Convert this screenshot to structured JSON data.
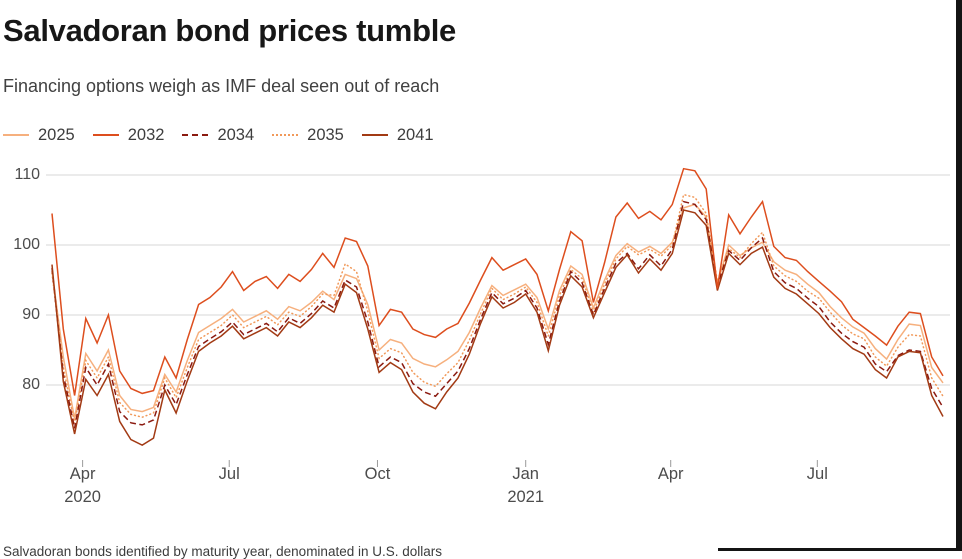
{
  "header": {
    "title": "Salvadoran bond prices tumble",
    "subtitle": "Financing options weigh as IMF deal seen out of reach"
  },
  "footnote": "Salvadoran bonds identified by maturity year, denominated in U.S. dollars",
  "colors": {
    "background": "#ffffff",
    "gridline": "#d7d7d7",
    "axis_text": "#4c4c4c",
    "title_text": "#171717",
    "subtitle_text": "#414141",
    "screenshot_edge": "#141414"
  },
  "chart_data": {
    "type": "line",
    "title": "Salvadoran bond prices tumble",
    "subtitle": "Financing options weigh as IMF deal seen out of reach",
    "ylabel": "",
    "xlabel": "",
    "ylim": [
      70,
      113
    ],
    "yticks": [
      80,
      90,
      100,
      110
    ],
    "grid": "horizontal",
    "legend_position": "top-left",
    "xticks": [
      {
        "label": "Apr",
        "sublabel": "2020",
        "date": "2020-04-01"
      },
      {
        "label": "Jul",
        "sublabel": "",
        "date": "2020-07-01"
      },
      {
        "label": "Oct",
        "sublabel": "",
        "date": "2020-10-01"
      },
      {
        "label": "Jan",
        "sublabel": "2021",
        "date": "2021-01-01"
      },
      {
        "label": "Apr",
        "sublabel": "",
        "date": "2021-04-01"
      },
      {
        "label": "Jul",
        "sublabel": "",
        "date": "2021-07-01"
      }
    ],
    "x": [
      "2020-03-13",
      "2020-03-20",
      "2020-03-27",
      "2020-04-03",
      "2020-04-10",
      "2020-04-17",
      "2020-04-24",
      "2020-05-01",
      "2020-05-08",
      "2020-05-15",
      "2020-05-22",
      "2020-05-29",
      "2020-06-05",
      "2020-06-12",
      "2020-06-19",
      "2020-06-26",
      "2020-07-03",
      "2020-07-10",
      "2020-07-17",
      "2020-07-24",
      "2020-07-31",
      "2020-08-07",
      "2020-08-14",
      "2020-08-21",
      "2020-08-28",
      "2020-09-04",
      "2020-09-11",
      "2020-09-18",
      "2020-09-25",
      "2020-10-02",
      "2020-10-09",
      "2020-10-16",
      "2020-10-23",
      "2020-10-30",
      "2020-11-06",
      "2020-11-13",
      "2020-11-20",
      "2020-11-27",
      "2020-12-04",
      "2020-12-11",
      "2020-12-18",
      "2020-12-25",
      "2021-01-01",
      "2021-01-08",
      "2021-01-15",
      "2021-01-22",
      "2021-01-29",
      "2021-02-05",
      "2021-02-12",
      "2021-02-19",
      "2021-02-26",
      "2021-03-05",
      "2021-03-12",
      "2021-03-19",
      "2021-03-26",
      "2021-04-02",
      "2021-04-09",
      "2021-04-16",
      "2021-04-23",
      "2021-04-30",
      "2021-05-07",
      "2021-05-14",
      "2021-05-21",
      "2021-05-28",
      "2021-06-04",
      "2021-06-11",
      "2021-06-18",
      "2021-06-25",
      "2021-07-02",
      "2021-07-09",
      "2021-07-16",
      "2021-07-23",
      "2021-07-30",
      "2021-08-06",
      "2021-08-13",
      "2021-08-20",
      "2021-08-27",
      "2021-09-03",
      "2021-09-10",
      "2021-09-17"
    ],
    "series": [
      {
        "name": "2025",
        "color": "#F6B07E",
        "style": "solid",
        "values": [
          96.3,
          84.0,
          75.2,
          84.5,
          82.0,
          85.0,
          78.5,
          76.5,
          76.2,
          76.8,
          81.5,
          79.0,
          83.5,
          87.5,
          88.5,
          89.5,
          90.8,
          89.0,
          89.8,
          90.6,
          89.4,
          91.2,
          90.6,
          91.8,
          93.4,
          92.2,
          95.8,
          95.2,
          91.5,
          85.0,
          86.5,
          86.0,
          83.8,
          83.0,
          82.6,
          83.6,
          84.8,
          87.5,
          91.0,
          94.2,
          92.8,
          93.6,
          94.4,
          92.5,
          88.0,
          93.5,
          97.0,
          95.8,
          91.0,
          95.0,
          98.5,
          100.2,
          99.0,
          99.8,
          98.8,
          100.4,
          105.3,
          105.8,
          104.0,
          94.5,
          100.0,
          98.5,
          99.6,
          100.4,
          97.6,
          96.4,
          95.8,
          94.4,
          93.2,
          91.2,
          89.6,
          88.3,
          87.4,
          85.2,
          83.7,
          86.5,
          88.7,
          88.5,
          82.5,
          80.3
        ]
      },
      {
        "name": "2032",
        "color": "#DD4E1E",
        "style": "solid",
        "values": [
          104.5,
          88.0,
          78.5,
          89.5,
          86.0,
          90.0,
          82.0,
          79.5,
          78.8,
          79.2,
          84.0,
          81.0,
          86.5,
          91.5,
          92.5,
          94.0,
          96.2,
          93.5,
          94.8,
          95.5,
          93.8,
          95.8,
          94.8,
          96.5,
          98.8,
          96.8,
          101.0,
          100.5,
          97.0,
          88.5,
          90.8,
          90.4,
          88.0,
          87.2,
          86.8,
          88.0,
          88.8,
          91.7,
          95.0,
          98.2,
          96.4,
          97.2,
          98.0,
          95.8,
          90.6,
          96.5,
          101.9,
          100.6,
          91.8,
          97.5,
          104.0,
          106.0,
          103.8,
          104.8,
          103.6,
          105.8,
          110.9,
          110.6,
          108.0,
          93.8,
          104.3,
          101.6,
          104.0,
          106.2,
          99.8,
          98.2,
          97.8,
          96.2,
          94.8,
          93.4,
          91.9,
          89.4,
          88.2,
          87.0,
          85.7,
          88.4,
          90.4,
          90.2,
          84.0,
          81.3
        ]
      },
      {
        "name": "2034",
        "color": "#8B1A10",
        "style": "dashed",
        "values": [
          96.7,
          81.5,
          73.8,
          82.5,
          80.0,
          83.0,
          76.2,
          74.6,
          74.3,
          75.0,
          80.0,
          77.2,
          81.5,
          85.5,
          86.6,
          87.6,
          89.0,
          87.2,
          88.0,
          88.8,
          87.6,
          89.6,
          88.8,
          90.2,
          92.0,
          91.0,
          95.0,
          94.0,
          89.0,
          82.6,
          84.0,
          83.2,
          80.2,
          79.0,
          78.4,
          80.2,
          82.0,
          85.2,
          89.4,
          93.2,
          91.6,
          92.4,
          93.5,
          91.0,
          85.8,
          92.0,
          96.2,
          94.6,
          90.0,
          93.8,
          97.4,
          98.8,
          96.6,
          98.6,
          97.0,
          99.4,
          106.2,
          105.8,
          103.6,
          94.2,
          99.2,
          97.8,
          99.6,
          101.0,
          96.2,
          94.6,
          93.8,
          92.4,
          91.2,
          89.0,
          87.4,
          86.2,
          85.4,
          83.0,
          81.9,
          84.2,
          85.0,
          84.8,
          79.5,
          76.8
        ]
      },
      {
        "name": "2035",
        "color": "#F1995A",
        "style": "dotted",
        "values": [
          96.0,
          82.5,
          74.5,
          83.5,
          81.0,
          84.0,
          77.5,
          75.8,
          75.4,
          76.0,
          81.0,
          78.2,
          82.5,
          86.5,
          87.5,
          88.5,
          90.0,
          88.2,
          89.0,
          89.8,
          88.6,
          90.4,
          89.8,
          91.2,
          93.0,
          92.8,
          97.3,
          96.2,
          90.5,
          83.8,
          85.2,
          84.6,
          81.8,
          80.4,
          79.8,
          81.6,
          83.2,
          86.4,
          90.2,
          93.8,
          92.2,
          93.0,
          94.0,
          91.8,
          87.0,
          92.8,
          96.5,
          95.2,
          90.4,
          94.4,
          98.0,
          99.8,
          98.6,
          99.4,
          98.4,
          100.0,
          107.2,
          106.8,
          104.5,
          94.8,
          99.5,
          98.2,
          100.2,
          101.8,
          97.0,
          95.6,
          94.8,
          93.4,
          92.4,
          90.4,
          88.6,
          87.3,
          86.6,
          84.0,
          82.7,
          85.4,
          87.2,
          87.0,
          81.0,
          78.4
        ]
      },
      {
        "name": "2041",
        "color": "#A23A14",
        "style": "solid",
        "values": [
          97.2,
          80.5,
          73.0,
          80.8,
          78.5,
          81.5,
          74.8,
          72.2,
          71.4,
          72.4,
          79.3,
          76.0,
          80.6,
          84.8,
          86.0,
          87.0,
          88.4,
          86.6,
          87.4,
          88.2,
          87.0,
          89.0,
          88.2,
          89.6,
          91.4,
          90.4,
          94.4,
          93.2,
          88.0,
          81.8,
          83.2,
          82.2,
          79.0,
          77.4,
          76.6,
          79.0,
          81.0,
          84.4,
          88.8,
          92.6,
          91.0,
          91.8,
          93.0,
          90.4,
          84.9,
          91.4,
          95.6,
          94.0,
          89.6,
          93.2,
          96.8,
          98.6,
          96.0,
          98.0,
          96.4,
          98.8,
          105.0,
          104.6,
          102.8,
          93.5,
          98.8,
          97.2,
          98.8,
          99.7,
          95.4,
          93.8,
          93.0,
          91.6,
          90.2,
          88.2,
          86.6,
          85.2,
          84.4,
          82.2,
          81.0,
          84.0,
          84.8,
          84.6,
          78.5,
          75.5
        ]
      }
    ]
  }
}
